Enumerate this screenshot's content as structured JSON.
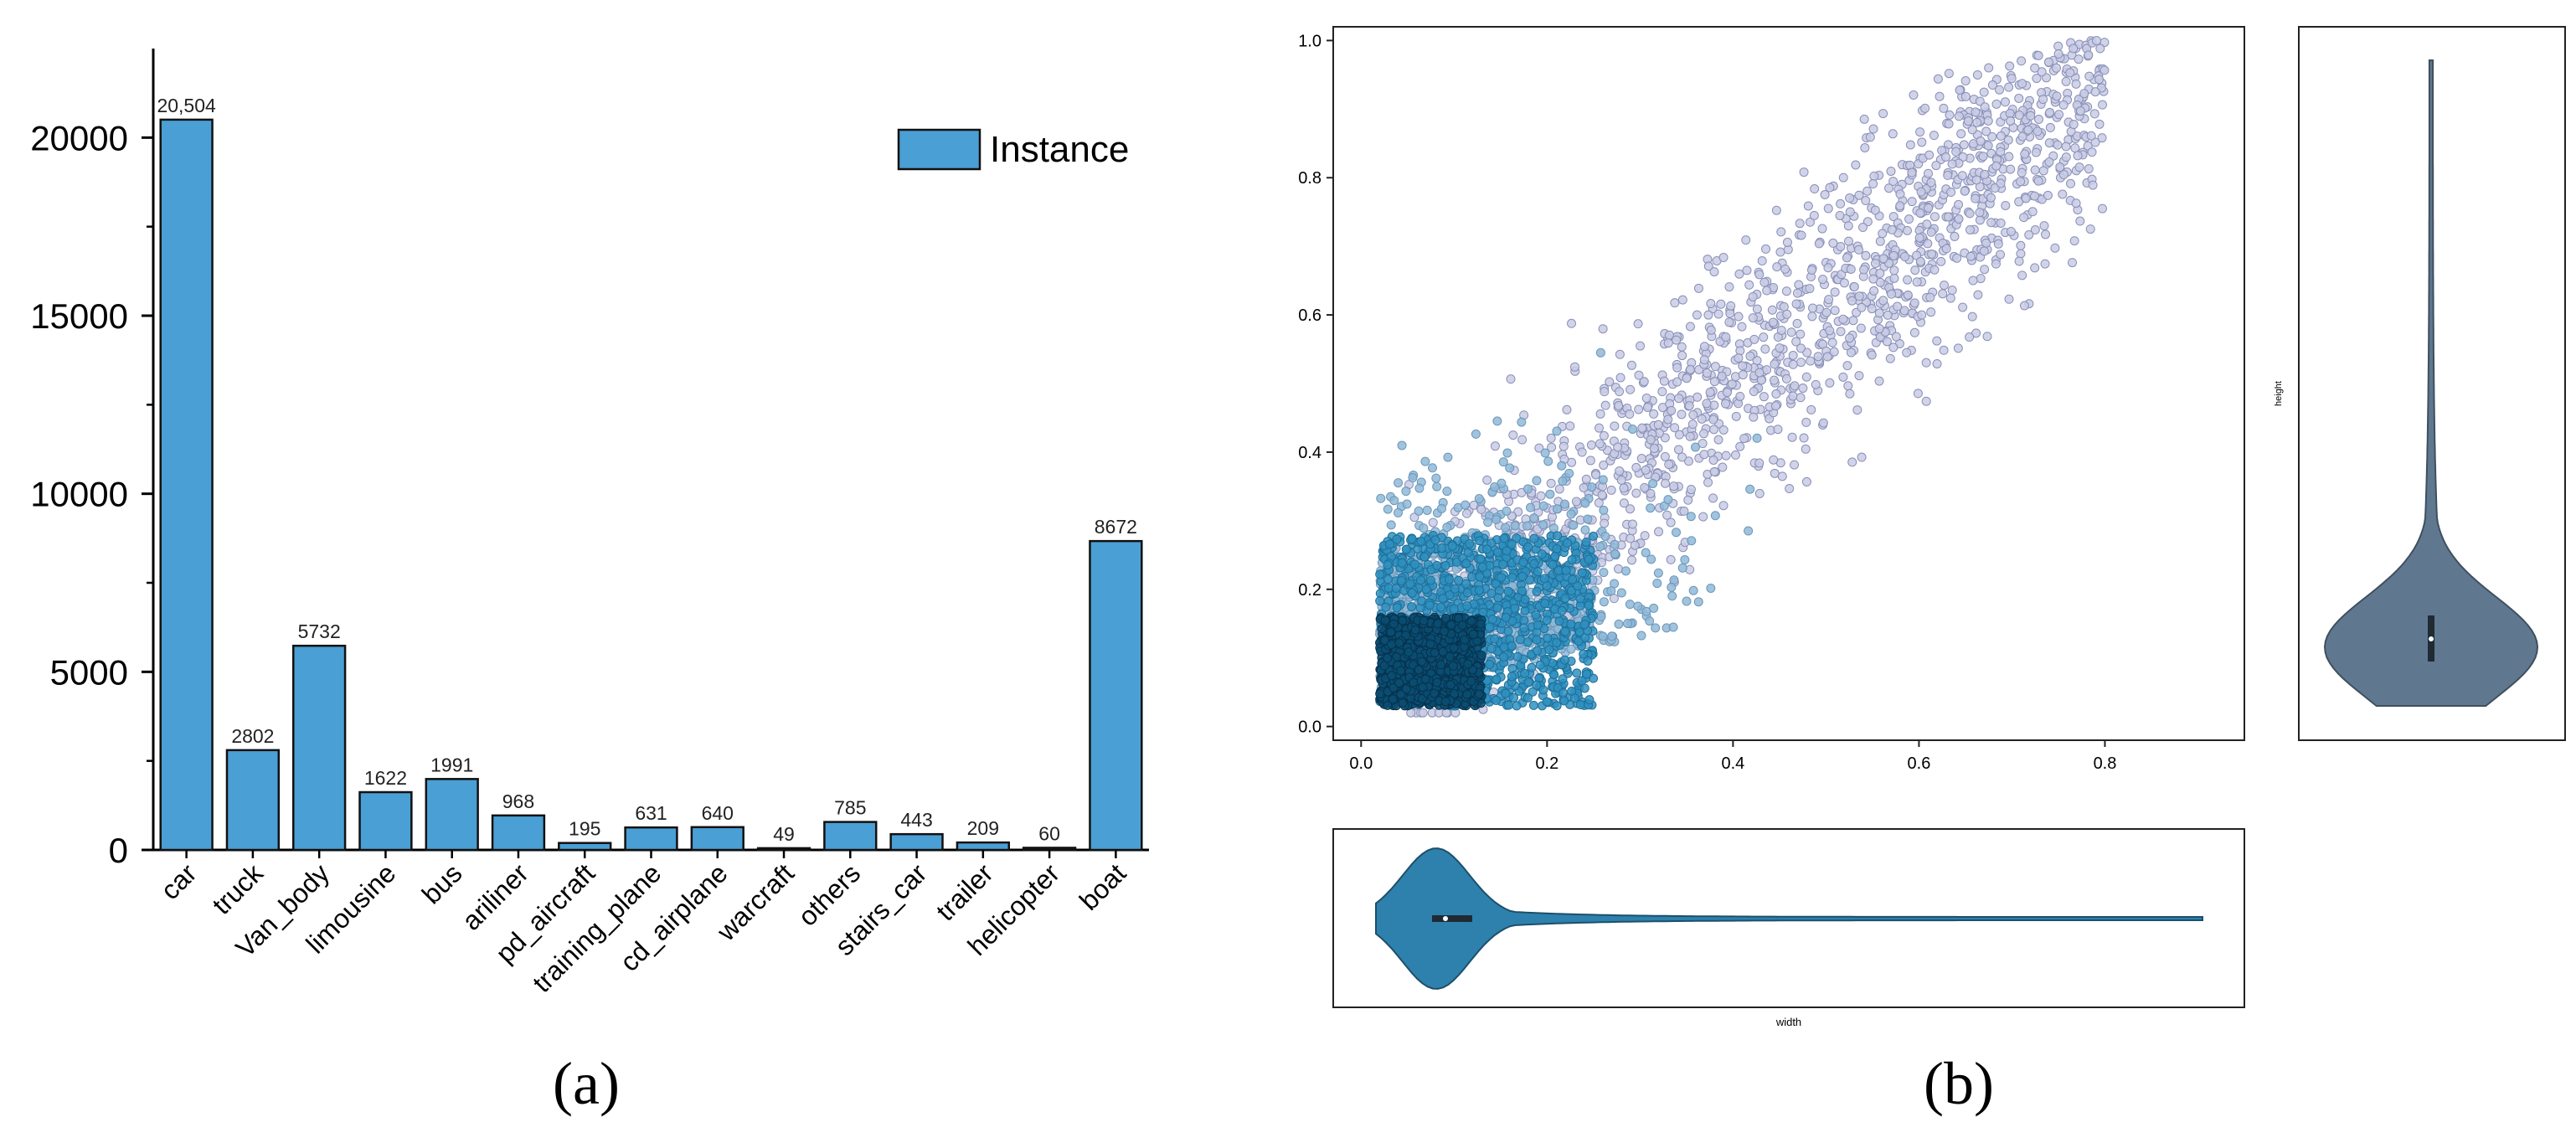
{
  "panels": {
    "a_label": "(a)",
    "b_label": "(b)"
  },
  "chart_data": [
    {
      "type": "bar",
      "panel": "(a)",
      "categories": [
        "car",
        "truck",
        "Van_body",
        "limousine",
        "bus",
        "ariliner",
        "pd_aircraft",
        "training_plane",
        "cd_airplane",
        "warcraft",
        "others",
        "stairs_car",
        "trailer",
        "helicopter",
        "boat"
      ],
      "series": [
        {
          "name": "Instance",
          "values": [
            20504,
            2802,
            5732,
            1622,
            1991,
            968,
            195,
            631,
            640,
            49,
            785,
            443,
            209,
            60,
            8672
          ],
          "data_labels": [
            "20,504",
            "2802",
            "5732",
            "1622",
            "1991",
            "968",
            "195",
            "631",
            "640",
            "49",
            "785",
            "443",
            "209",
            "60",
            "8672"
          ]
        }
      ],
      "ylim": [
        0,
        22500
      ],
      "yticks": [
        0,
        5000,
        10000,
        15000,
        20000
      ],
      "legend": "top-right",
      "grid": false,
      "colors": {
        "bar": "#4a9fd4",
        "edge": "#111111"
      }
    },
    {
      "type": "scatter",
      "panel": "(b)",
      "xlabel": "width",
      "ylabel": "height",
      "xlim": [
        -0.03,
        0.95
      ],
      "ylim": [
        -0.02,
        1.02
      ],
      "xticks": [
        0.0,
        0.2,
        0.4,
        0.6,
        0.8
      ],
      "yticks": [
        0.0,
        0.2,
        0.4,
        0.6,
        0.8,
        1.0
      ],
      "point_groups": [
        {
          "density": "low",
          "x_range": [
            0.0,
            0.9
          ],
          "y_range": [
            0.0,
            1.0
          ],
          "color": "#c9cce4"
        },
        {
          "density": "medium",
          "x_range": [
            0.0,
            0.45
          ],
          "y_range": [
            0.0,
            0.6
          ],
          "color": "#8fb8d8"
        },
        {
          "density": "high",
          "x_range": [
            0.02,
            0.25
          ],
          "y_range": [
            0.03,
            0.28
          ],
          "color": "#2f91c0"
        },
        {
          "density": "highest",
          "x_range": [
            0.02,
            0.13
          ],
          "y_range": [
            0.03,
            0.16
          ],
          "color": "#0a4d73"
        }
      ],
      "marginals": {
        "height_violin": {
          "median": 0.11,
          "mode": 0.11,
          "min": 0.02,
          "max": 1.0,
          "color": "#5f7890"
        },
        "width_violin": {
          "median": 0.09,
          "mode": 0.07,
          "min": 0.0,
          "max": 0.91,
          "color": "#2e81ad"
        }
      }
    }
  ]
}
